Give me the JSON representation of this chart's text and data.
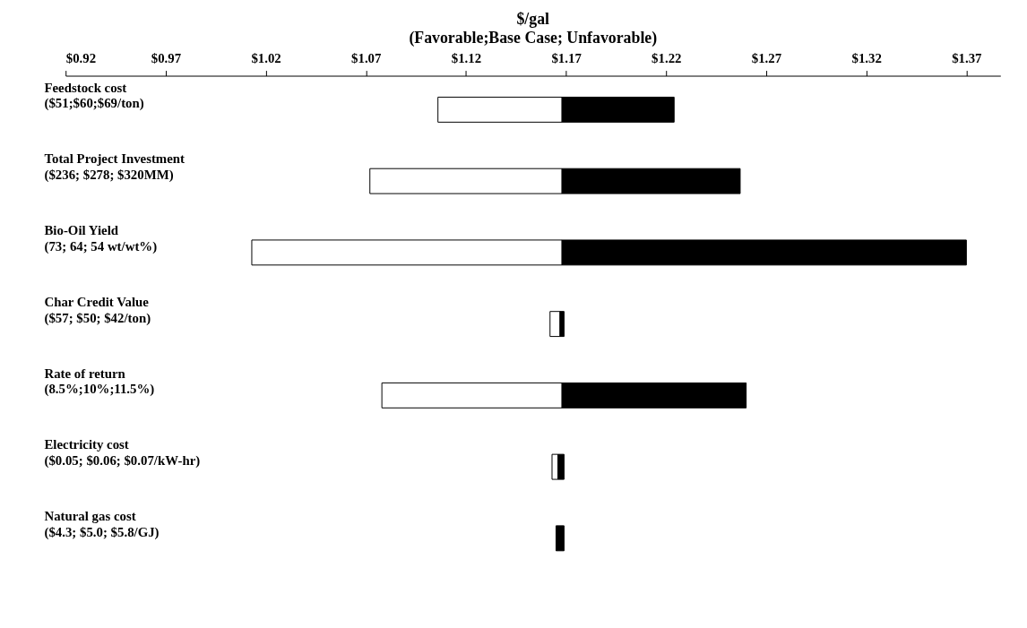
{
  "chart_data": {
    "type": "bar",
    "orientation": "horizontal",
    "title": "$/gal",
    "subtitle": "(Favorable;Base Case; Unfavorable)",
    "categories": [
      "Feedstock cost\n($51;$60;$69/ton)",
      "Total Project Investment\n($236; $278; $320MM)",
      "Bio-Oil Yield\n(73; 64; 54 wt/wt%)",
      "Char Credit Value\n($57; $50; $42/ton)",
      "Rate of return\n (8.5%;10%;11.5%)",
      "Electricity cost\n($0.05; $0.06; $0.07/kW-hr)",
      "Natural gas cost\n($4.3; $5.0; $5.8/GJ)"
    ],
    "series": [
      {
        "color": "#ffffff",
        "base": [
          1.106,
          1.072,
          1.013,
          1.162,
          1.078,
          1.163,
          null
        ],
        "values": [
          0.062,
          0.096,
          0.155,
          0.005,
          0.09,
          0.003,
          null
        ]
      },
      {
        "color": "#000000",
        "base": [
          1.168,
          1.168,
          1.168,
          1.167,
          1.168,
          1.166,
          1.165
        ],
        "values": [
          0.056,
          0.089,
          0.202,
          0.002,
          0.092,
          0.003,
          0.004
        ]
      }
    ],
    "xlim": [
      0.92,
      1.387
    ],
    "xticks": [
      {
        "value": 0.92,
        "label": "$0.92"
      },
      {
        "value": 0.97,
        "label": "$0.97"
      },
      {
        "value": 1.02,
        "label": "$1.02"
      },
      {
        "value": 1.07,
        "label": "$1.07"
      },
      {
        "value": 1.12,
        "label": "$1.12"
      },
      {
        "value": 1.17,
        "label": "$1.17"
      },
      {
        "value": 1.22,
        "label": "$1.22"
      },
      {
        "value": 1.27,
        "label": "$1.27"
      },
      {
        "value": 1.32,
        "label": "$1.32"
      },
      {
        "value": 1.37,
        "label": "$1.37"
      }
    ],
    "grid": false
  }
}
